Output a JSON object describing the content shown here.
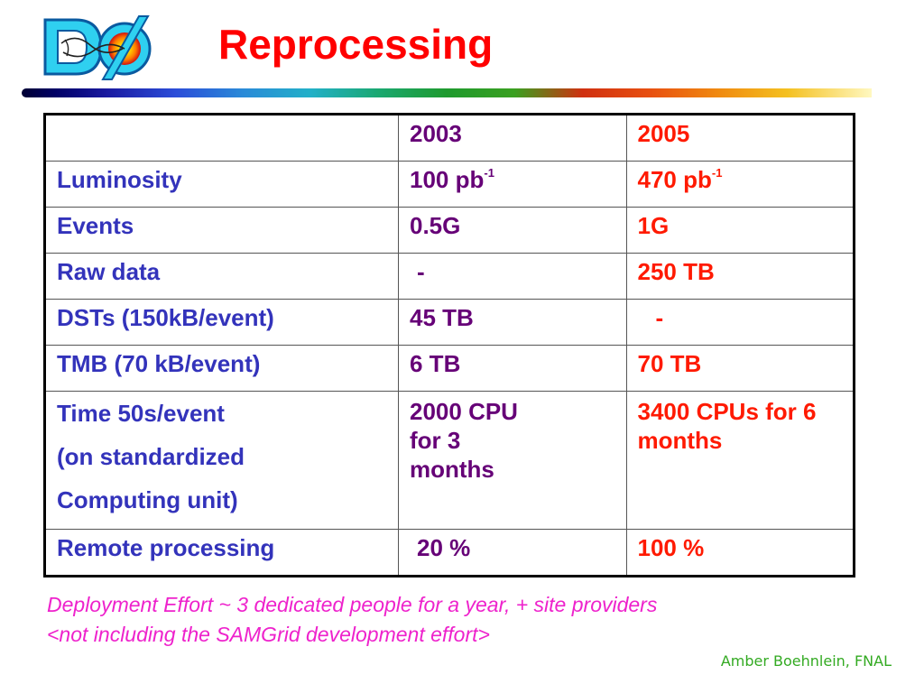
{
  "title": "Reprocessing",
  "logo": {
    "icon": "d0-logo-icon",
    "accent": "#22c8e8"
  },
  "table": {
    "header": {
      "label": "",
      "y2003": "2003",
      "y2005": "2005"
    },
    "rows": [
      {
        "label": "Luminosity",
        "y2003": "100 pb",
        "y2003_sup": "-1",
        "y2005": "470 pb",
        "y2005_sup": "-1"
      },
      {
        "label": "Events",
        "y2003": "0.5G",
        "y2005": "1G"
      },
      {
        "label": "Raw data",
        "y2003": "-",
        "y2005": "250 TB"
      },
      {
        "label": "DSTs (150kB/event)",
        "y2003": "45 TB",
        "y2005": "-"
      },
      {
        "label": "TMB (70 kB/event)",
        "y2003": "6 TB",
        "y2005": "70 TB"
      },
      {
        "label_lines": [
          "Time 50s/event",
          "(on standardized",
          "Computing unit)"
        ],
        "y2003_lines": [
          "2000 CPU",
          "for 3",
          "months"
        ],
        "y2005_lines": [
          "3400 CPUs for 6",
          "months"
        ]
      },
      {
        "label": "Remote processing",
        "y2003": "20 %",
        "y2005": "100 %"
      }
    ]
  },
  "notes": {
    "line1": "Deployment Effort ~ 3 dedicated people for a year, + site providers",
    "line2": "<not including the SAMGrid development effort>"
  },
  "author": "Amber Boehnlein, FNAL",
  "colors": {
    "title": "#ff0000",
    "label": "#3333bb",
    "col2003": "#660077",
    "col2005": "#ff1a00",
    "notes": "#ee22cc",
    "author": "#33aa22"
  }
}
